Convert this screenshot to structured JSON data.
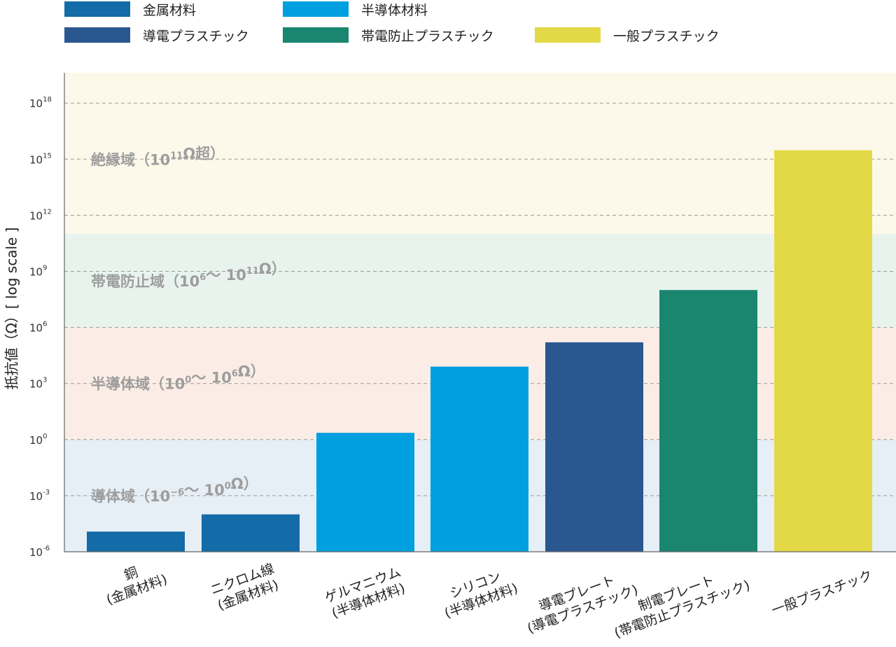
{
  "chart_data": {
    "type": "bar",
    "title": "",
    "ylabel": "抵抗値（Ω）[ log scale ]",
    "xlabel": "",
    "y_scale": "log",
    "ylim": [
      1e-06,
      1e+20
    ],
    "grid": true,
    "legend_position": "top",
    "y_ticks": [
      {
        "value": 1e-06,
        "base": "10",
        "exp": "-6"
      },
      {
        "value": 0.001,
        "base": "10",
        "exp": "-3"
      },
      {
        "value": 1,
        "base": "10",
        "exp": "0"
      },
      {
        "value": 1000.0,
        "base": "10",
        "exp": "3"
      },
      {
        "value": 1000000.0,
        "base": "10",
        "exp": "6"
      },
      {
        "value": 1000000000.0,
        "base": "10",
        "exp": "9"
      },
      {
        "value": 1000000000000.0,
        "base": "10",
        "exp": "12"
      },
      {
        "value": 1000000000000000.0,
        "base": "10",
        "exp": "15"
      },
      {
        "value": 1e+18,
        "base": "10",
        "exp": "18"
      }
    ],
    "legend": [
      {
        "label": "金属材料",
        "color": "#136ba8"
      },
      {
        "label": "半導体材料",
        "color": "#009fe0"
      },
      {
        "label": "導電プラスチック",
        "color": "#2a578f"
      },
      {
        "label": "帯電防止プラスチック",
        "color": "#1a8670"
      },
      {
        "label": "一般プラスチック",
        "color": "#e3d947"
      }
    ],
    "regions": [
      {
        "name": "導体域",
        "from": 1e-06,
        "to": 1,
        "color": "#e6eef6",
        "label": [
          {
            "t": "導体域（10"
          },
          {
            "t": "−6",
            "sup": true
          },
          {
            "t": "〜 10"
          },
          {
            "t": "0",
            "sup": true
          },
          {
            "t": "Ω）"
          }
        ]
      },
      {
        "name": "半導体域",
        "from": 1,
        "to": 1000000.0,
        "color": "#fbede5",
        "label": [
          {
            "t": "半導体域（10"
          },
          {
            "t": "0",
            "sup": true
          },
          {
            "t": "〜 10"
          },
          {
            "t": "6",
            "sup": true
          },
          {
            "t": "Ω）"
          }
        ]
      },
      {
        "name": "帯電防止域",
        "from": 1000000.0,
        "to": 100000000000.0,
        "color": "#e8f3ee",
        "label": [
          {
            "t": "帯電防止域（10"
          },
          {
            "t": "6",
            "sup": true
          },
          {
            "t": "〜 10"
          },
          {
            "t": "11",
            "sup": true
          },
          {
            "t": "Ω）"
          }
        ]
      },
      {
        "name": "絶縁域",
        "from": 100000000000.0,
        "to": 1e+20,
        "color": "#fcf9ea",
        "label": [
          {
            "t": "絶縁域（10"
          },
          {
            "t": "11",
            "sup": true
          },
          {
            "t": "Ω超）"
          }
        ]
      }
    ],
    "categories": [
      [
        "銅",
        "(金属材料)"
      ],
      [
        "ニクロム線",
        "(金属材料)"
      ],
      [
        "ゲルマニウム",
        "(半導体材料)"
      ],
      [
        "シリコン",
        "(半導体材料)"
      ],
      [
        "導電プレート",
        "(導電プラスチック)"
      ],
      [
        "制電プレート",
        "(帯電防止プラスチック)"
      ],
      [
        "一般プラスチック"
      ]
    ],
    "values": [
      1.2e-05,
      0.0001,
      2.3,
      8000.0,
      160000.0,
      100000000.0,
      3000000000000000.0
    ],
    "colors": [
      "#136ba8",
      "#136ba8",
      "#009fe0",
      "#009fe0",
      "#2a578f",
      "#1a8670",
      "#e3d947"
    ]
  }
}
